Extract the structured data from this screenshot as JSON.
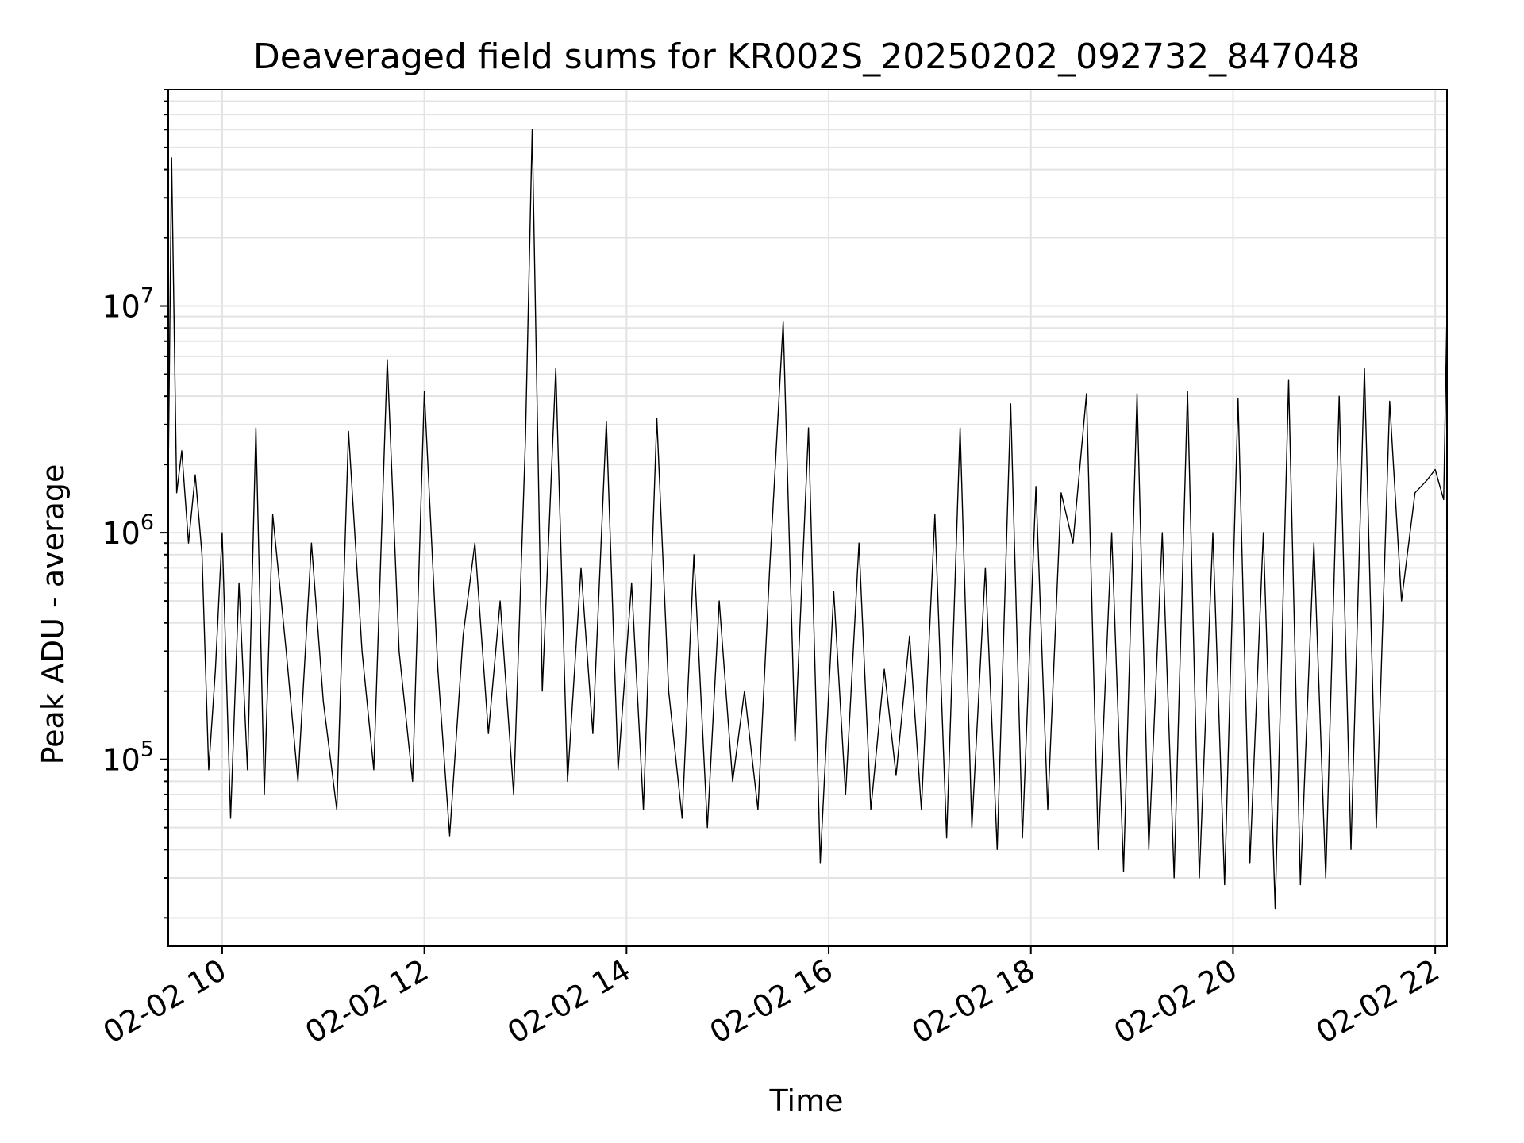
{
  "chart_data": {
    "type": "line",
    "title": "Deaveraged field sums for KR002S_20250202_092732_847048",
    "xlabel": "Time",
    "ylabel": "Peak ADU - average",
    "y_scale": "log",
    "xlim": [
      "2025-02-02 09:28",
      "2025-02-02 22:07"
    ],
    "ylim": [
      15000,
      90000000
    ],
    "grid": true,
    "line_color": "#000000",
    "x_ticks": [
      {
        "t": "2025-02-02 10:00",
        "label": "02-02 10"
      },
      {
        "t": "2025-02-02 12:00",
        "label": "02-02 12"
      },
      {
        "t": "2025-02-02 14:00",
        "label": "02-02 14"
      },
      {
        "t": "2025-02-02 16:00",
        "label": "02-02 16"
      },
      {
        "t": "2025-02-02 18:00",
        "label": "02-02 18"
      },
      {
        "t": "2025-02-02 20:00",
        "label": "02-02 20"
      },
      {
        "t": "2025-02-02 22:00",
        "label": "02-02 22"
      }
    ],
    "y_ticks": [
      {
        "value": 100000,
        "base": "10",
        "exp": "5"
      },
      {
        "value": 1000000,
        "base": "10",
        "exp": "6"
      },
      {
        "value": 10000000,
        "base": "10",
        "exp": "7"
      }
    ],
    "series": [
      {
        "x": [
          "2025-02-02 09:28",
          "2025-02-02 09:30",
          "2025-02-02 09:33",
          "2025-02-02 09:36",
          "2025-02-02 09:40",
          "2025-02-02 09:44",
          "2025-02-02 09:48",
          "2025-02-02 09:52",
          "2025-02-02 09:56",
          "2025-02-02 10:00",
          "2025-02-02 10:05",
          "2025-02-02 10:10",
          "2025-02-02 10:15",
          "2025-02-02 10:20",
          "2025-02-02 10:25",
          "2025-02-02 10:30",
          "2025-02-02 10:38",
          "2025-02-02 10:45",
          "2025-02-02 10:53",
          "2025-02-02 11:00",
          "2025-02-02 11:08",
          "2025-02-02 11:15",
          "2025-02-02 11:23",
          "2025-02-02 11:30",
          "2025-02-02 11:38",
          "2025-02-02 11:45",
          "2025-02-02 11:53",
          "2025-02-02 12:00",
          "2025-02-02 12:08",
          "2025-02-02 12:15",
          "2025-02-02 12:23",
          "2025-02-02 12:30",
          "2025-02-02 12:38",
          "2025-02-02 12:45",
          "2025-02-02 12:53",
          "2025-02-02 13:00",
          "2025-02-02 13:04",
          "2025-02-02 13:10",
          "2025-02-02 13:18",
          "2025-02-02 13:25",
          "2025-02-02 13:33",
          "2025-02-02 13:40",
          "2025-02-02 13:48",
          "2025-02-02 13:55",
          "2025-02-02 14:03",
          "2025-02-02 14:10",
          "2025-02-02 14:18",
          "2025-02-02 14:25",
          "2025-02-02 14:33",
          "2025-02-02 14:40",
          "2025-02-02 14:48",
          "2025-02-02 14:55",
          "2025-02-02 15:03",
          "2025-02-02 15:10",
          "2025-02-02 15:18",
          "2025-02-02 15:25",
          "2025-02-02 15:33",
          "2025-02-02 15:40",
          "2025-02-02 15:48",
          "2025-02-02 15:55",
          "2025-02-02 16:03",
          "2025-02-02 16:10",
          "2025-02-02 16:18",
          "2025-02-02 16:25",
          "2025-02-02 16:33",
          "2025-02-02 16:40",
          "2025-02-02 16:48",
          "2025-02-02 16:55",
          "2025-02-02 17:03",
          "2025-02-02 17:10",
          "2025-02-02 17:18",
          "2025-02-02 17:25",
          "2025-02-02 17:33",
          "2025-02-02 17:40",
          "2025-02-02 17:48",
          "2025-02-02 17:55",
          "2025-02-02 18:03",
          "2025-02-02 18:10",
          "2025-02-02 18:18",
          "2025-02-02 18:25",
          "2025-02-02 18:33",
          "2025-02-02 18:40",
          "2025-02-02 18:48",
          "2025-02-02 18:55",
          "2025-02-02 19:03",
          "2025-02-02 19:10",
          "2025-02-02 19:18",
          "2025-02-02 19:25",
          "2025-02-02 19:33",
          "2025-02-02 19:40",
          "2025-02-02 19:48",
          "2025-02-02 19:55",
          "2025-02-02 20:03",
          "2025-02-02 20:10",
          "2025-02-02 20:18",
          "2025-02-02 20:25",
          "2025-02-02 20:33",
          "2025-02-02 20:40",
          "2025-02-02 20:48",
          "2025-02-02 20:55",
          "2025-02-02 21:03",
          "2025-02-02 21:10",
          "2025-02-02 21:18",
          "2025-02-02 21:25",
          "2025-02-02 21:33",
          "2025-02-02 21:40",
          "2025-02-02 21:48",
          "2025-02-02 21:55",
          "2025-02-02 22:00",
          "2025-02-02 22:05",
          "2025-02-02 22:07"
        ],
        "y": [
          1800000,
          45000000,
          1500000,
          2300000,
          900000,
          1800000,
          800000,
          90000,
          250000,
          1000000,
          55000,
          600000,
          90000,
          2900000,
          70000,
          1200000,
          300000,
          80000,
          900000,
          180000,
          60000,
          2800000,
          300000,
          90000,
          5800000,
          300000,
          80000,
          4200000,
          250000,
          46000,
          350000,
          900000,
          130000,
          500000,
          70000,
          2600000,
          60000000,
          200000,
          5300000,
          80000,
          700000,
          130000,
          3100000,
          90000,
          600000,
          60000,
          3200000,
          200000,
          55000,
          800000,
          50000,
          500000,
          80000,
          200000,
          60000,
          700000,
          8500000,
          120000,
          2900000,
          35000,
          550000,
          70000,
          900000,
          60000,
          250000,
          85000,
          350000,
          60000,
          1200000,
          45000,
          2900000,
          50000,
          700000,
          40000,
          3700000,
          45000,
          1600000,
          60000,
          1500000,
          900000,
          4100000,
          40000,
          1000000,
          32000,
          4100000,
          40000,
          1000000,
          30000,
          4200000,
          30000,
          1000000,
          28000,
          3900000,
          35000,
          1000000,
          22000,
          4700000,
          28000,
          900000,
          30000,
          4000000,
          40000,
          5300000,
          50000,
          3800000,
          500000,
          1500000,
          1700000,
          1900000,
          1400000,
          9500000
        ]
      }
    ]
  }
}
